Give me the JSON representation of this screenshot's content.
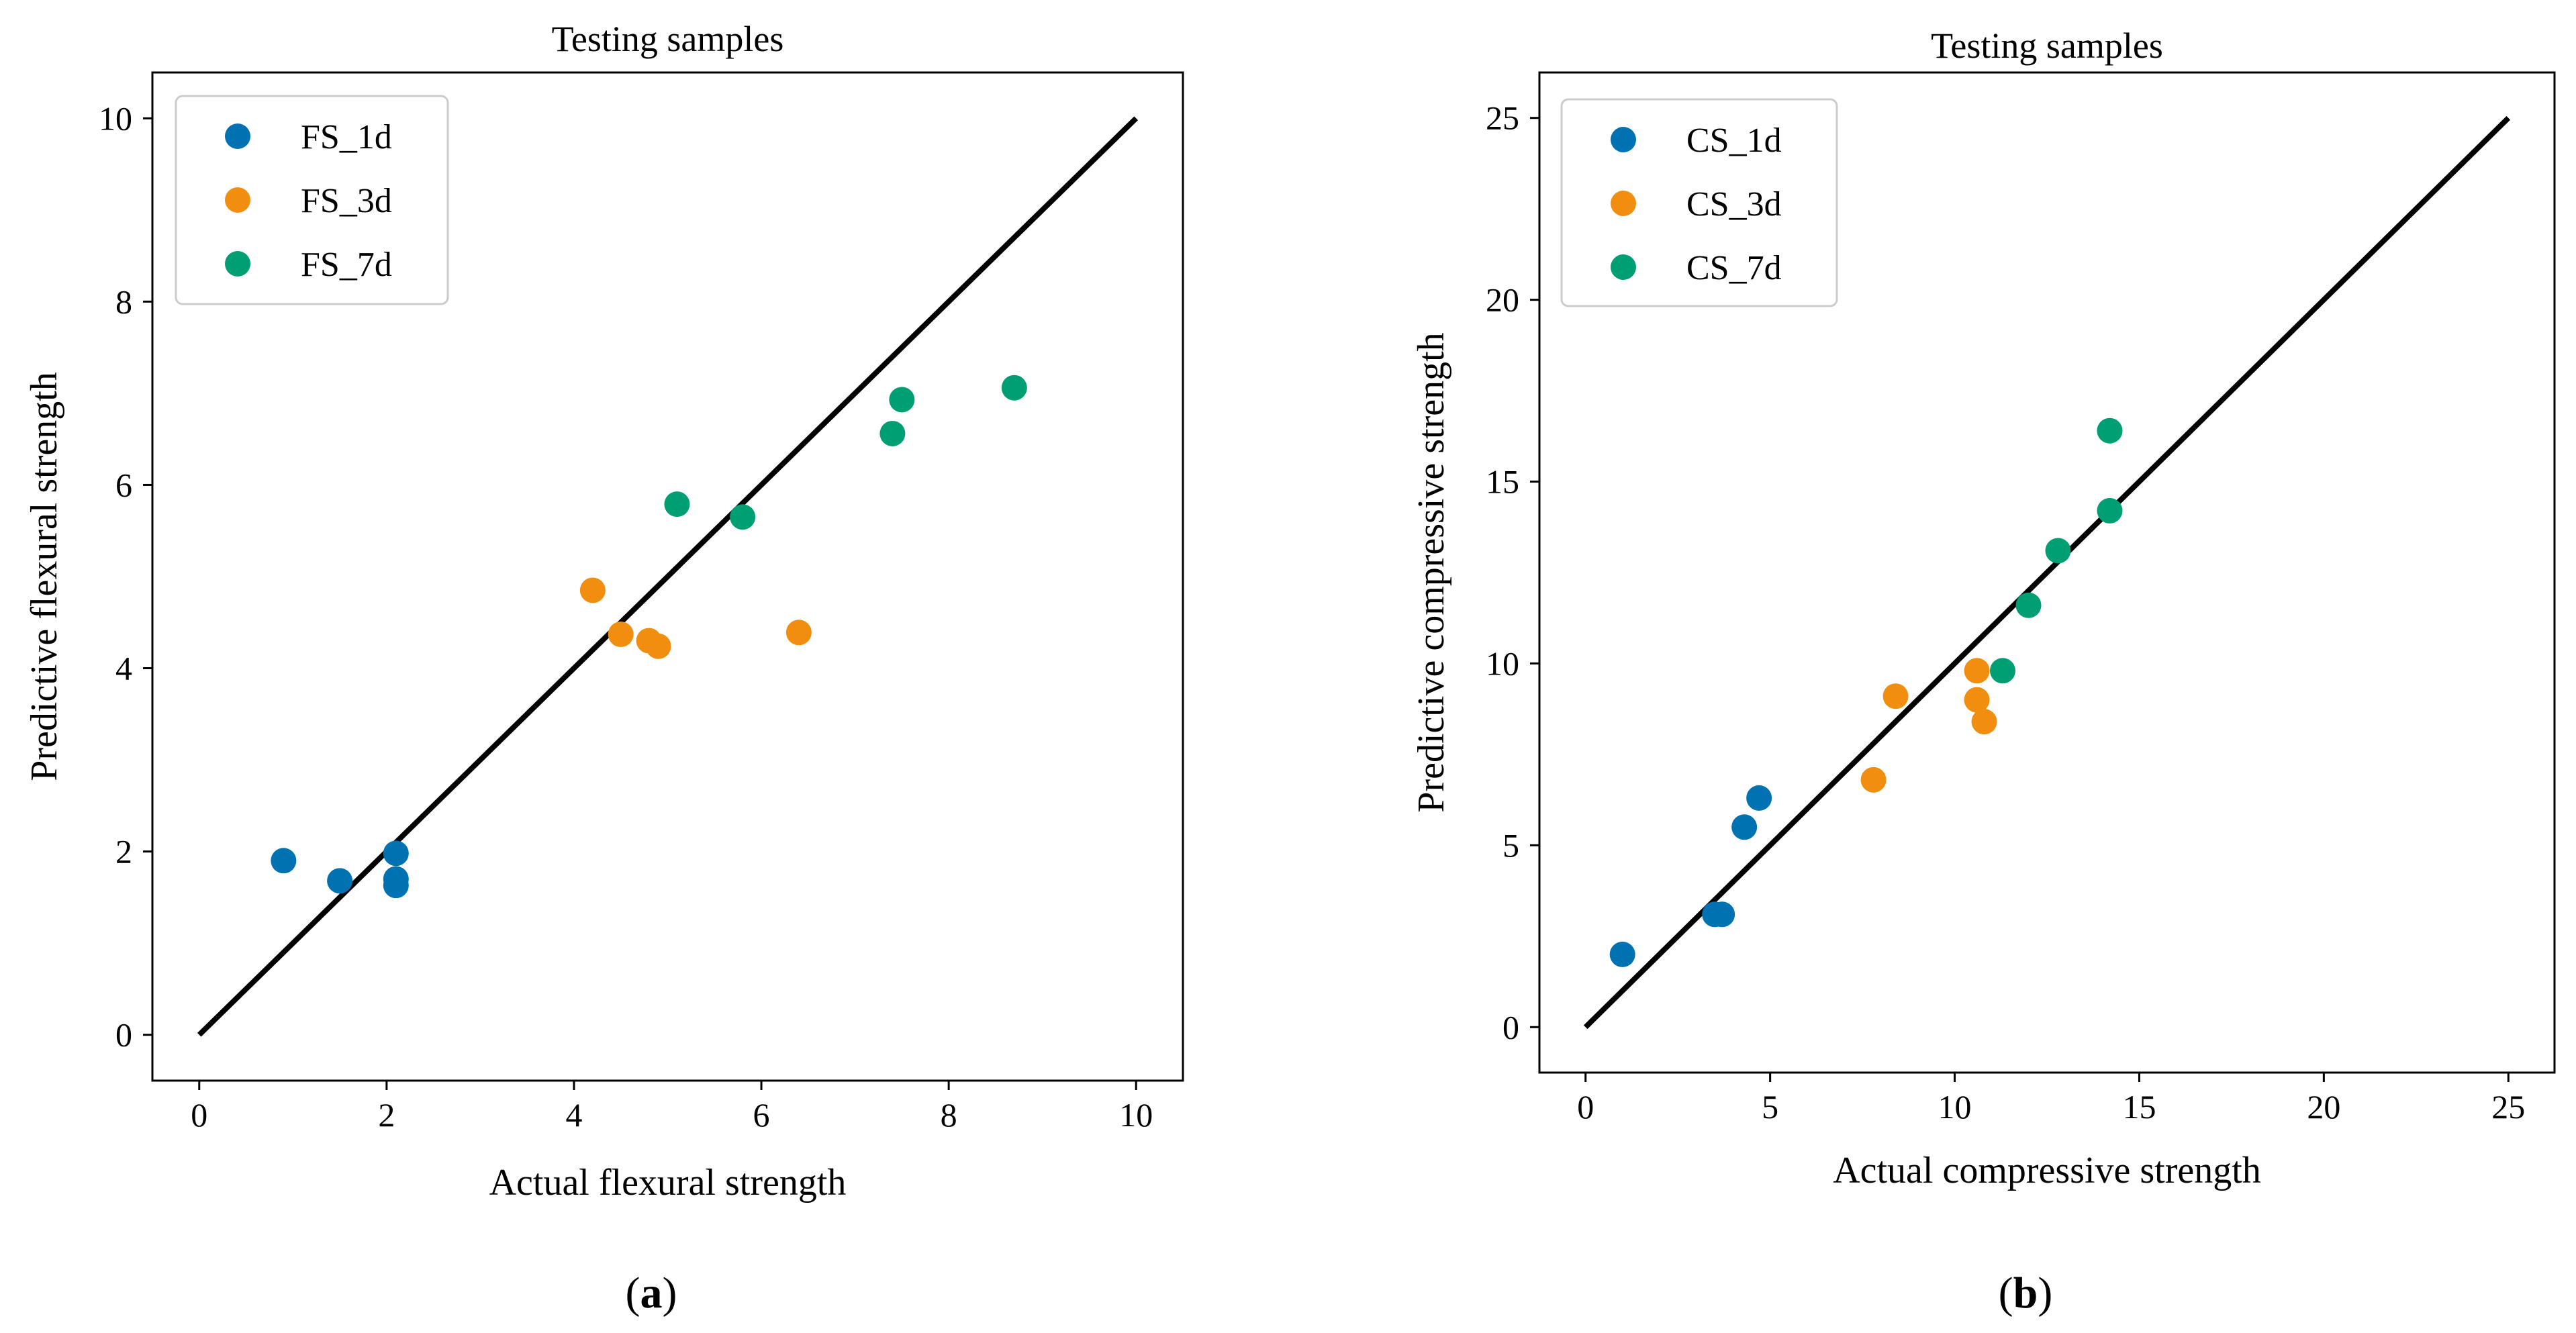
{
  "colors": {
    "series_1d": "#0072b2",
    "series_3d": "#f28e0f",
    "series_7d": "#009e73",
    "identity_line": "#000000",
    "legend_border": "#cccccc"
  },
  "panels": {
    "a": {
      "label_open": "(",
      "label_letter": "a",
      "label_close": ")"
    },
    "b": {
      "label_open": "(",
      "label_letter": "b",
      "label_close": ")"
    }
  },
  "chart_data": [
    {
      "id": "a",
      "type": "scatter",
      "title": "Testing samples",
      "xlabel": "Actual flexural strength",
      "ylabel": "Predictive flexural strength",
      "xlim": [
        -0.5,
        10.5
      ],
      "ylim": [
        -0.5,
        10.5
      ],
      "xticks": [
        0,
        2,
        4,
        6,
        8,
        10
      ],
      "yticks": [
        0,
        2,
        4,
        6,
        8,
        10
      ],
      "grid": false,
      "legend_position": "top-left",
      "identity_line": [
        [
          0,
          0
        ],
        [
          10,
          10
        ]
      ],
      "series": [
        {
          "name": "FS_1d",
          "color_key": "series_1d",
          "points": [
            [
              0.9,
              1.9
            ],
            [
              1.5,
              1.68
            ],
            [
              2.1,
              1.98
            ],
            [
              2.1,
              1.7
            ],
            [
              2.1,
              1.63
            ]
          ]
        },
        {
          "name": "FS_3d",
          "color_key": "series_3d",
          "points": [
            [
              4.2,
              4.85
            ],
            [
              4.5,
              4.37
            ],
            [
              4.8,
              4.3
            ],
            [
              4.9,
              4.24
            ],
            [
              6.4,
              4.39
            ]
          ]
        },
        {
          "name": "FS_7d",
          "color_key": "series_7d",
          "points": [
            [
              5.1,
              5.79
            ],
            [
              5.8,
              5.65
            ],
            [
              7.4,
              6.56
            ],
            [
              7.5,
              6.93
            ],
            [
              8.7,
              7.06
            ]
          ]
        }
      ]
    },
    {
      "id": "b",
      "type": "scatter",
      "title": "Testing samples",
      "xlabel": "Actual compressive strength",
      "ylabel": "Predictive compressive strength",
      "xlim": [
        -1.25,
        26.25
      ],
      "ylim": [
        -1.25,
        26.25
      ],
      "xticks": [
        0,
        5,
        10,
        15,
        20,
        25
      ],
      "yticks": [
        0,
        5,
        10,
        15,
        20,
        25
      ],
      "grid": false,
      "legend_position": "top-left",
      "identity_line": [
        [
          0,
          0
        ],
        [
          25,
          25
        ]
      ],
      "series": [
        {
          "name": "CS_1d",
          "color_key": "series_1d",
          "points": [
            [
              1.0,
              2.0
            ],
            [
              3.5,
              3.1
            ],
            [
              3.7,
              3.1
            ],
            [
              4.3,
              5.5
            ],
            [
              4.7,
              6.3
            ]
          ]
        },
        {
          "name": "CS_3d",
          "color_key": "series_3d",
          "points": [
            [
              7.8,
              6.8
            ],
            [
              8.4,
              9.1
            ],
            [
              10.6,
              9.8
            ],
            [
              10.6,
              9.0
            ],
            [
              10.8,
              8.4
            ]
          ]
        },
        {
          "name": "CS_7d",
          "color_key": "series_7d",
          "points": [
            [
              11.3,
              9.8
            ],
            [
              12.0,
              11.6
            ],
            [
              12.8,
              13.1
            ],
            [
              14.2,
              14.2
            ],
            [
              14.2,
              16.4
            ]
          ]
        }
      ]
    }
  ]
}
